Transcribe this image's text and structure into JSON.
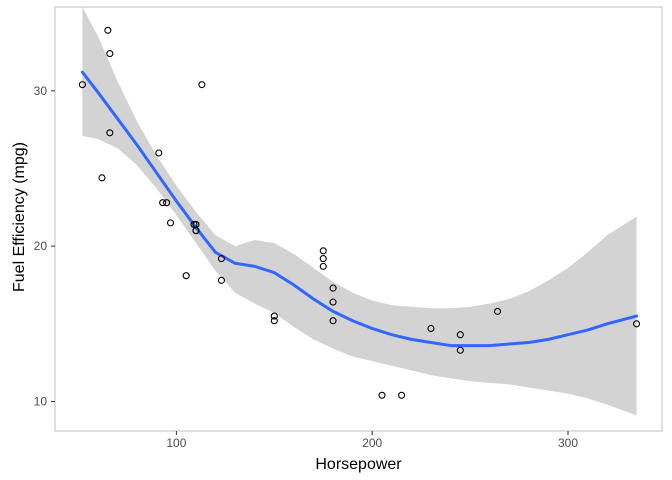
{
  "chart_data": {
    "type": "scatter",
    "title": "",
    "xlabel": "Horsepower",
    "ylabel": "Fuel Efficiency (mpg)",
    "xlim": [
      38,
      348
    ],
    "ylim": [
      8.1,
      35.4
    ],
    "xticks": [
      100,
      200,
      300
    ],
    "yticks": [
      10,
      20,
      30
    ],
    "grid": false,
    "colors": {
      "trend": "#3366ff",
      "ribbon": "#d3d3d3",
      "point_stroke": "#000000",
      "panel_border": "#bfbfbf"
    },
    "points": [
      {
        "x": 52,
        "y": 30.4
      },
      {
        "x": 62,
        "y": 24.4
      },
      {
        "x": 65,
        "y": 33.9
      },
      {
        "x": 66,
        "y": 32.4
      },
      {
        "x": 66,
        "y": 27.3
      },
      {
        "x": 91,
        "y": 26.0
      },
      {
        "x": 93,
        "y": 22.8
      },
      {
        "x": 95,
        "y": 22.8
      },
      {
        "x": 97,
        "y": 21.5
      },
      {
        "x": 105,
        "y": 18.1
      },
      {
        "x": 109,
        "y": 21.4
      },
      {
        "x": 110,
        "y": 21.4
      },
      {
        "x": 110,
        "y": 21.0
      },
      {
        "x": 110,
        "y": 21.0
      },
      {
        "x": 113,
        "y": 30.4
      },
      {
        "x": 123,
        "y": 19.2
      },
      {
        "x": 123,
        "y": 17.8
      },
      {
        "x": 150,
        "y": 15.5
      },
      {
        "x": 150,
        "y": 15.2
      },
      {
        "x": 175,
        "y": 19.7
      },
      {
        "x": 175,
        "y": 19.2
      },
      {
        "x": 175,
        "y": 18.7
      },
      {
        "x": 180,
        "y": 17.3
      },
      {
        "x": 180,
        "y": 16.4
      },
      {
        "x": 180,
        "y": 15.2
      },
      {
        "x": 205,
        "y": 10.4
      },
      {
        "x": 215,
        "y": 10.4
      },
      {
        "x": 230,
        "y": 14.7
      },
      {
        "x": 245,
        "y": 14.3
      },
      {
        "x": 245,
        "y": 13.3
      },
      {
        "x": 264,
        "y": 15.8
      },
      {
        "x": 335,
        "y": 15.0
      }
    ],
    "trend": {
      "x": [
        52,
        60,
        70,
        80,
        90,
        100,
        110,
        120,
        130,
        140,
        150,
        160,
        170,
        180,
        190,
        200,
        210,
        220,
        230,
        240,
        250,
        260,
        270,
        280,
        290,
        300,
        310,
        320,
        335
      ],
      "y": [
        31.2,
        29.9,
        28.2,
        26.5,
        24.7,
        22.9,
        21.2,
        19.6,
        18.9,
        18.7,
        18.3,
        17.5,
        16.6,
        15.8,
        15.2,
        14.7,
        14.3,
        14.0,
        13.8,
        13.6,
        13.6,
        13.6,
        13.7,
        13.8,
        14.0,
        14.3,
        14.6,
        15.0,
        15.5
      ],
      "lower": [
        27.1,
        26.9,
        26.3,
        25.2,
        23.7,
        22.0,
        20.2,
        18.4,
        17.0,
        16.3,
        15.7,
        14.8,
        14.0,
        13.4,
        12.9,
        12.6,
        12.3,
        12.0,
        11.7,
        11.5,
        11.3,
        11.2,
        11.1,
        10.9,
        10.7,
        10.5,
        10.2,
        9.8,
        9.1
      ],
      "upper": [
        35.4,
        33.5,
        30.6,
        28.0,
        25.8,
        23.9,
        22.2,
        20.7,
        20.0,
        20.4,
        20.2,
        19.5,
        18.6,
        17.7,
        17.0,
        16.5,
        16.2,
        16.1,
        16.0,
        16.0,
        16.1,
        16.3,
        16.6,
        17.1,
        17.8,
        18.6,
        19.6,
        20.7,
        21.9
      ]
    }
  }
}
